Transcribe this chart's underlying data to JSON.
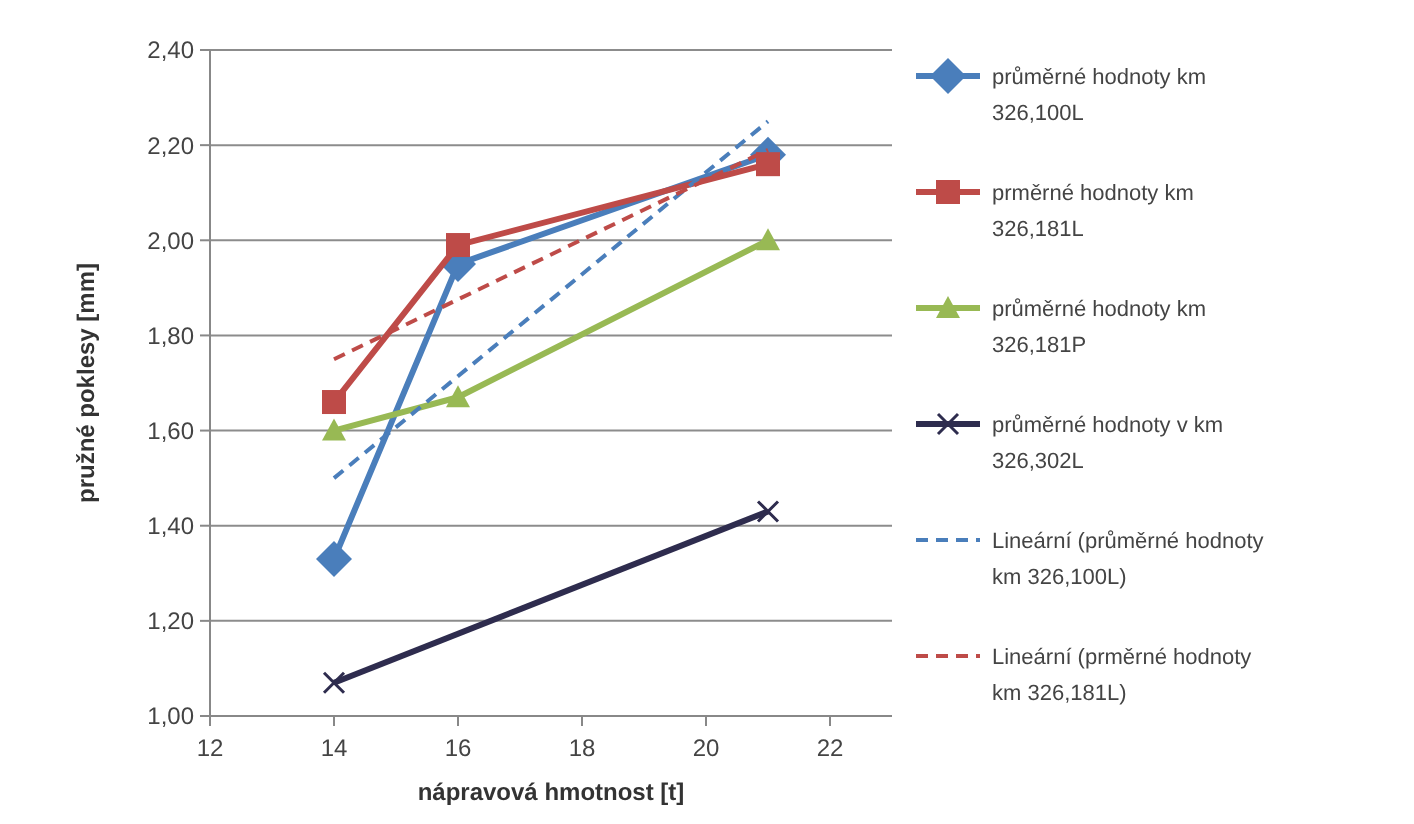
{
  "chart_data": {
    "type": "line",
    "xlabel": "nápravová hmotnost [t]",
    "ylabel": "pružné poklesy [mm]",
    "xlim": [
      12,
      23
    ],
    "xticks": [
      12,
      14,
      16,
      18,
      20,
      22
    ],
    "ylim": [
      1,
      2.4
    ],
    "yticks": [
      {
        "value": 1,
        "label": "1,00"
      },
      {
        "value": 1.2,
        "label": "1,20"
      },
      {
        "value": 1.4,
        "label": "1,40"
      },
      {
        "value": 1.6,
        "label": "1,60"
      },
      {
        "value": 1.8,
        "label": "1,80"
      },
      {
        "value": 2,
        "label": "2,00"
      },
      {
        "value": 2.2,
        "label": "2,20"
      },
      {
        "value": 2.4,
        "label": "2,40"
      }
    ],
    "grid": "y",
    "legend": "right",
    "series": [
      {
        "name": "průměrné hodnoty km 326,100L",
        "color": "#4a7ebb",
        "x": [
          14,
          16,
          21
        ],
        "values": [
          1.33,
          1.95,
          2.18
        ],
        "marker": "diamond"
      },
      {
        "name": "prměrné hodnoty km 326,181L",
        "color": "#be4b48",
        "x": [
          14,
          16,
          21
        ],
        "values": [
          1.66,
          1.99,
          2.16
        ],
        "marker": "square"
      },
      {
        "name": "průměrné hodnoty km 326,181P",
        "color": "#98b954",
        "x": [
          14,
          16,
          21
        ],
        "values": [
          1.6,
          1.67,
          2.0
        ],
        "marker": "triangle"
      },
      {
        "name": "průměrné hodnoty v km 326,302L",
        "color": "#2e2c4e",
        "x": [
          14,
          21
        ],
        "values": [
          1.07,
          1.43
        ],
        "marker": "cross"
      },
      {
        "name": "Lineární (průměrné hodnoty km 326,100L)",
        "color": "#4a7ebb",
        "x": [
          14,
          21
        ],
        "values": [
          1.5,
          2.25
        ],
        "marker": "none",
        "line_style": "dashed"
      },
      {
        "name": "Lineární (prměrné hodnoty km 326,181L)",
        "color": "#be4b48",
        "x": [
          14,
          21
        ],
        "values": [
          1.75,
          2.19
        ],
        "marker": "none",
        "line_style": "dashed"
      }
    ]
  }
}
